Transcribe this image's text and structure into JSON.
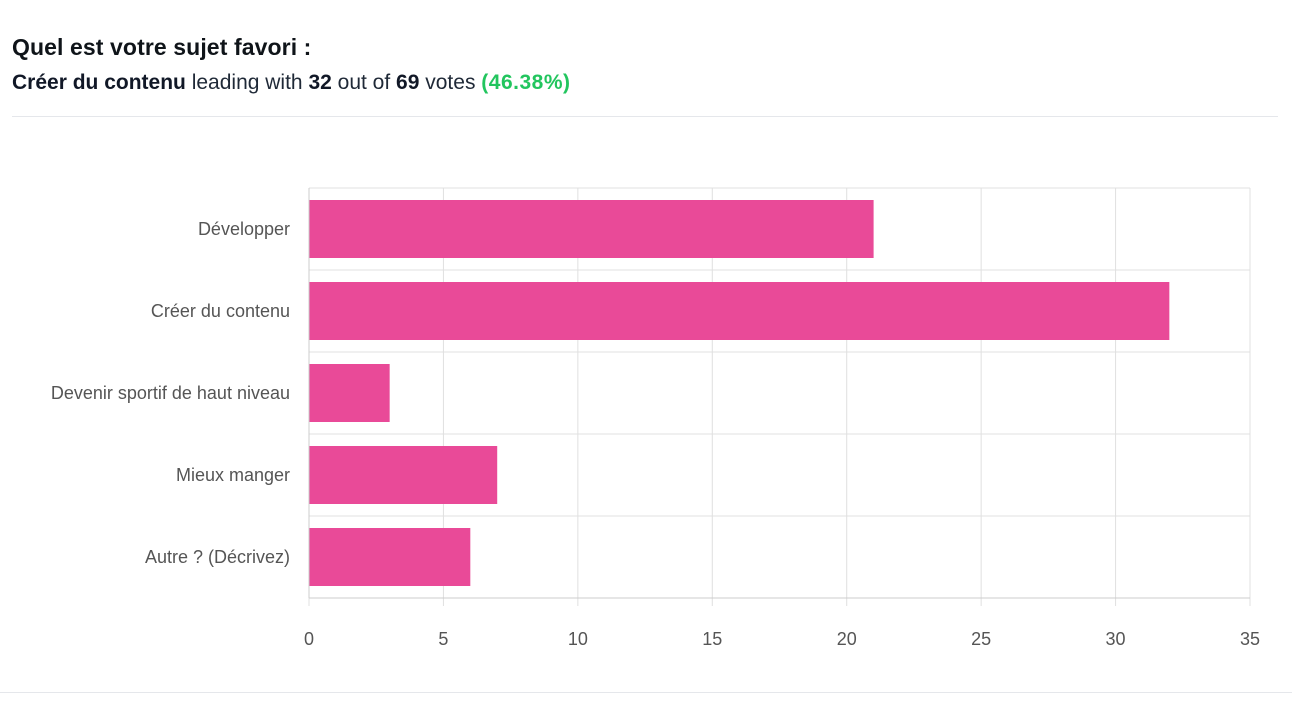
{
  "poll": {
    "question": "Quel est votre sujet favori :",
    "leader": "Créer du contenu",
    "leading_text": "leading with",
    "leader_votes": "32",
    "out_of_text": "out of",
    "total_votes": "69",
    "votes_text": "votes",
    "leader_percent": "(46.38%)"
  },
  "colors": {
    "bar": "#e94a98",
    "percent": "#22c55e",
    "grid": "#e0e0e0"
  },
  "chart_data": {
    "type": "bar",
    "orientation": "horizontal",
    "categories": [
      "Développer",
      "Créer du contenu",
      "Devenir sportif de haut niveau",
      "Mieux manger",
      "Autre ? (Décrivez)"
    ],
    "values": [
      21,
      32,
      3,
      7,
      6
    ],
    "xlim": [
      0,
      35
    ],
    "xticks": [
      0,
      5,
      10,
      15,
      20,
      25,
      30,
      35
    ],
    "grid": true,
    "title": "",
    "xlabel": "",
    "ylabel": ""
  }
}
